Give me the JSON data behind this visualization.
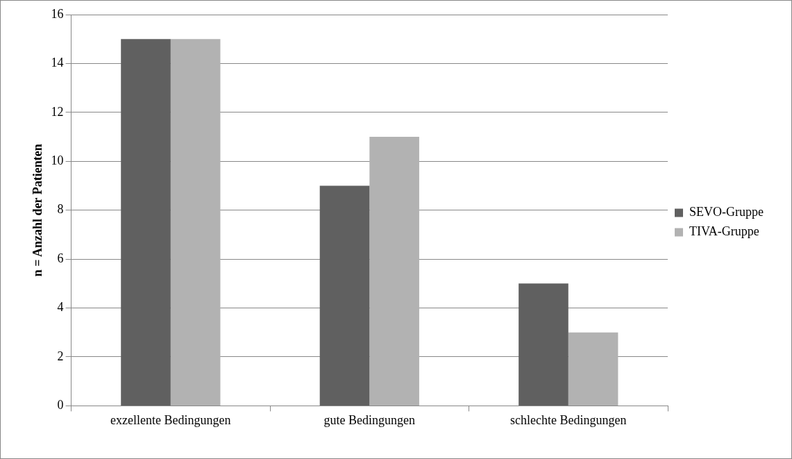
{
  "chart_data": {
    "type": "bar",
    "ylabel": "n = Anzahl der Patienten",
    "categories": [
      "exzellente Bedingungen",
      "gute Bedingungen",
      "schlechte Bedingungen"
    ],
    "series": [
      {
        "name": "SEVO-Gruppe",
        "color": "#606060",
        "values": [
          15,
          9,
          5
        ]
      },
      {
        "name": "TIVA-Gruppe",
        "color": "#b2b2b2",
        "values": [
          15,
          11,
          3
        ]
      }
    ],
    "ylim": [
      0,
      16
    ],
    "yticks": [
      0,
      2,
      4,
      6,
      8,
      10,
      12,
      14,
      16
    ],
    "grid": "y",
    "legend": "right"
  }
}
